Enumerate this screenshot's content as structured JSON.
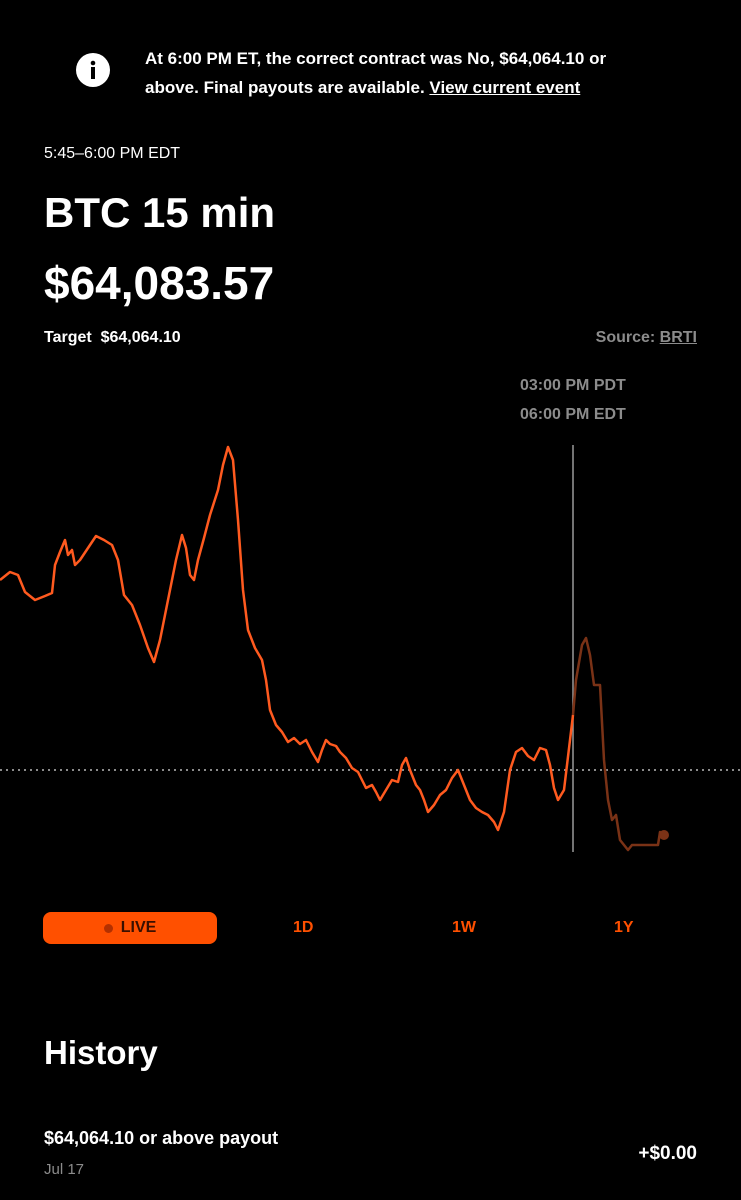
{
  "banner": {
    "lines": [
      "At 6:00 PM ET, the correct contract was No, $64,064.10 or",
      "above. Final payouts are available."
    ],
    "link": "View current event"
  },
  "event": {
    "time_range": "5:45–6:00 PM EDT",
    "title": "BTC 15 min",
    "price": "$64,083.57"
  },
  "target": {
    "label": "Target",
    "value": "$64,064.10"
  },
  "source": {
    "label": "Source:",
    "link": "BRTI"
  },
  "chart": {
    "time_labels": [
      "03:00 PM PDT",
      "06:00 PM EDT"
    ]
  },
  "tabs": [
    "LIVE",
    "1D",
    "1W",
    "1Y"
  ],
  "history": {
    "title": "History",
    "rows": [
      {
        "title": "$64,064.10 or above payout",
        "date": "Jul 17",
        "amount": "+$0.00"
      }
    ]
  }
}
